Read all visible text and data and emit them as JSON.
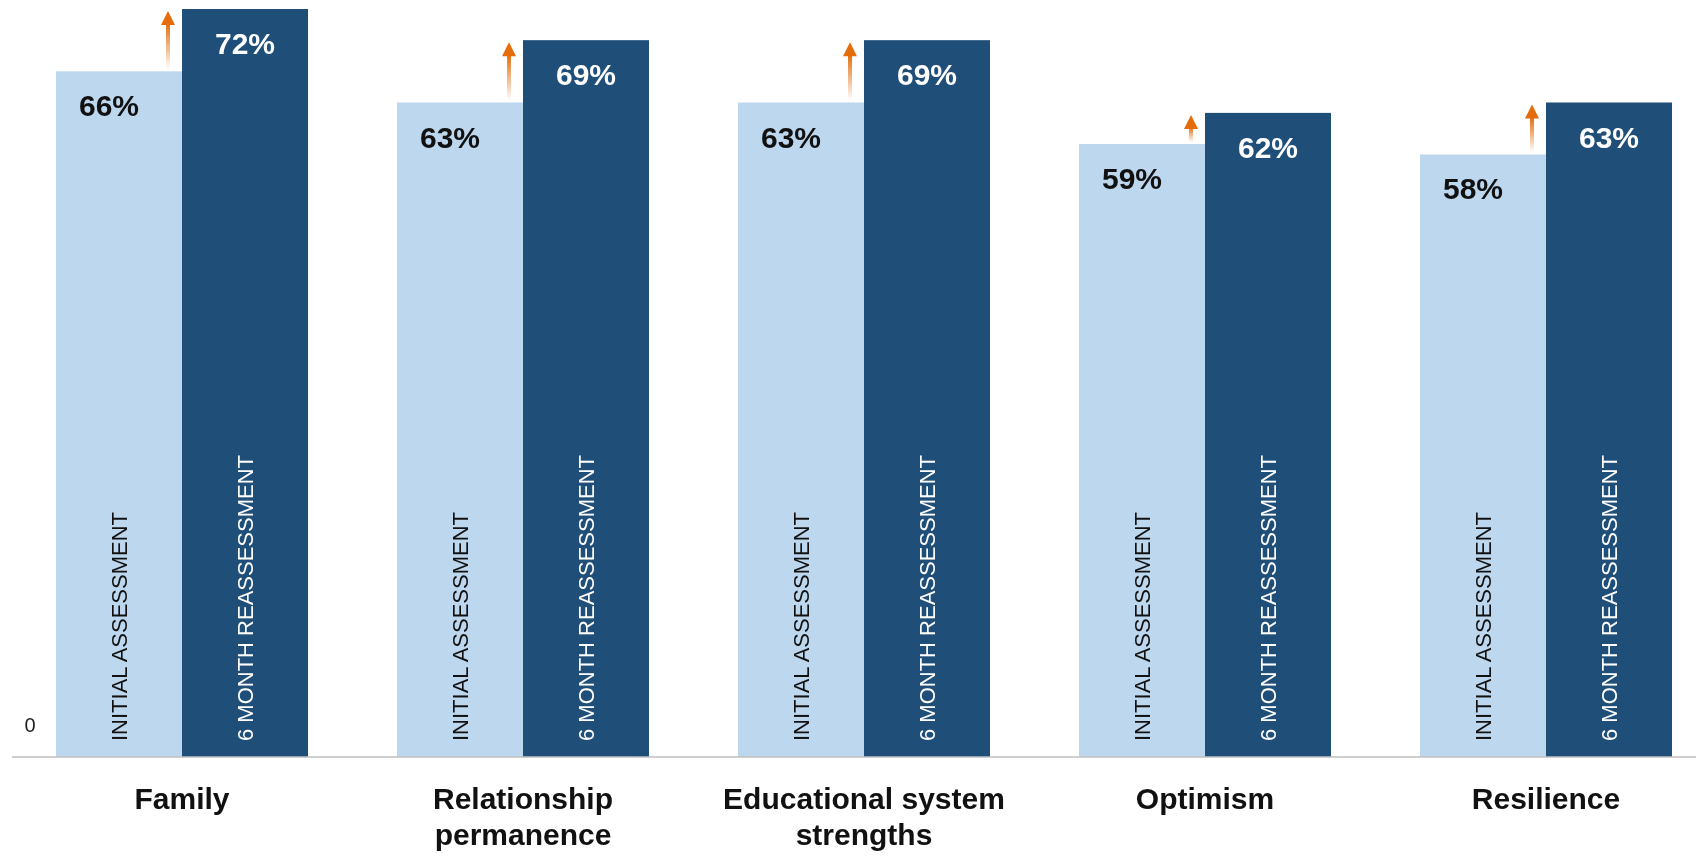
{
  "chart_data": {
    "type": "bar",
    "categories": [
      "Family",
      "Relationship permanence",
      "Educational system strengths",
      "Optimism",
      "Resilience"
    ],
    "series": [
      {
        "name": "INITIAL ASSESSMENT",
        "color": "#bdd7ee",
        "values": [
          66,
          63,
          63,
          59,
          58
        ],
        "value_labels": [
          "66%",
          "63%",
          "63%",
          "59%",
          "58%"
        ]
      },
      {
        "name": "6 MONTH REASSESSMENT",
        "color": "#1f4e79",
        "values": [
          72,
          69,
          69,
          62,
          63
        ],
        "value_labels": [
          "72%",
          "69%",
          "69%",
          "62%",
          "63%"
        ]
      }
    ],
    "ylim": [
      0,
      72
    ],
    "annotations": [
      "0"
    ],
    "legend": false
  }
}
